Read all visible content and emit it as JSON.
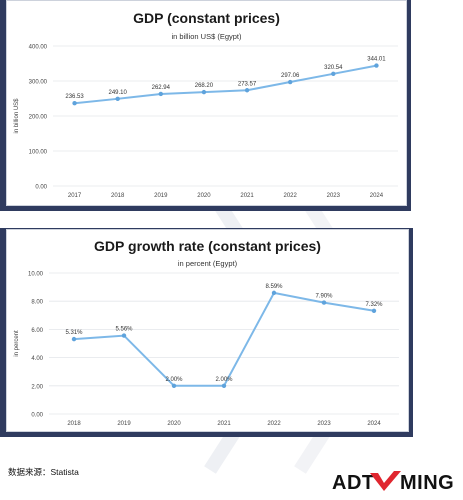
{
  "source_text": "数据来源：Statista",
  "logo_text": "ADTIMING",
  "colors": {
    "line": "#7db8e8",
    "point": "#5fa3dc",
    "grid": "#e4e6ea",
    "dark": "#2f3b5f",
    "logo_red": "#e0262f"
  },
  "chart_data": [
    {
      "type": "line",
      "title": "GDP (constant prices)",
      "subtitle": "in billion US$ (Egypt)",
      "ylabel": "in billion US$",
      "xlabel": "",
      "ylim": [
        0,
        400
      ],
      "yticks": [
        "0.00",
        "100.00",
        "200.00",
        "300.00",
        "400.00"
      ],
      "categories": [
        "2017",
        "2018",
        "2019",
        "2020",
        "2021",
        "2022",
        "2023",
        "2024"
      ],
      "values": [
        236.53,
        249.1,
        262.94,
        268.2,
        273.57,
        297.06,
        320.54,
        344.01
      ],
      "labels": [
        "236.53",
        "249.10",
        "262.94",
        "268.20",
        "273.57",
        "297.06",
        "320.54",
        "344.01"
      ],
      "grid": true
    },
    {
      "type": "line",
      "title": "GDP growth rate (constant prices)",
      "subtitle": "in percent (Egypt)",
      "ylabel": "in percent",
      "xlabel": "",
      "ylim": [
        0,
        10
      ],
      "yticks": [
        "0.00",
        "2.00",
        "4.00",
        "6.00",
        "8.00",
        "10.00"
      ],
      "categories": [
        "2018",
        "2019",
        "2020",
        "2021",
        "2022",
        "2023",
        "2024"
      ],
      "values": [
        5.31,
        5.56,
        2.0,
        2.0,
        8.59,
        7.9,
        7.32
      ],
      "labels": [
        "5.31%",
        "5.56%",
        "2.00%",
        "2.00%",
        "8.59%",
        "7.90%",
        "7.32%"
      ],
      "grid": true
    }
  ]
}
